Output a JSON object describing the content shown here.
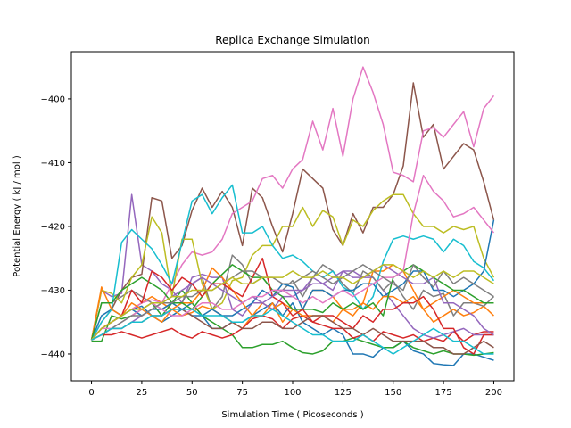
{
  "chart_data": {
    "type": "line",
    "title": "Replica Exchange Simulation",
    "xlabel": "Simulation Time ( Picoseconds )",
    "ylabel": "Potential Energy ( kJ / mol )",
    "xlim": [
      -10,
      210
    ],
    "ylim": [
      -444.2,
      -392.6
    ],
    "xticks": [
      0,
      25,
      50,
      75,
      100,
      125,
      150,
      175,
      200
    ],
    "yticks": [
      -440,
      -430,
      -420,
      -410,
      -400
    ],
    "grid": false,
    "legend": "none",
    "x": [
      0,
      5,
      10,
      15,
      20,
      25,
      30,
      35,
      40,
      45,
      50,
      55,
      60,
      65,
      70,
      75,
      80,
      85,
      90,
      95,
      100,
      105,
      110,
      115,
      120,
      125,
      130,
      135,
      140,
      145,
      150,
      155,
      160,
      165,
      170,
      175,
      180,
      185,
      190,
      195,
      200
    ],
    "series": [
      {
        "color": "#1f77b4",
        "values": [
          -437.8,
          -434,
          -433,
          -434,
          -433,
          -432.5,
          -434,
          -435,
          -434,
          -433,
          -432,
          -434,
          -436,
          -436,
          -435,
          -435,
          -434,
          -433,
          -432,
          -434,
          -432,
          -435,
          -436,
          -437,
          -436,
          -437,
          -440,
          -440,
          -440.5,
          -439,
          -439,
          -438,
          -439.5,
          -440,
          -441.5,
          -441.7,
          -441.8,
          -440,
          -440,
          -440.5,
          -441
        ]
      },
      {
        "color": "#ff7f0e",
        "values": [
          -437.8,
          -436,
          -435,
          -434,
          -433,
          -432,
          -431,
          -432,
          -433,
          -434,
          -433.5,
          -432.5,
          -433,
          -434,
          -435,
          -436,
          -434,
          -432,
          -433,
          -432,
          -433,
          -433,
          -430,
          -430,
          -431,
          -433,
          -434,
          -432,
          -427,
          -427,
          -426,
          -427,
          -430,
          -433,
          -435,
          -434,
          -433,
          -434,
          -433.5,
          -432.5,
          -434
        ]
      },
      {
        "color": "#2ca02c",
        "values": [
          -438,
          -438,
          -434,
          -434.5,
          -434,
          -433,
          -432,
          -434,
          -432,
          -430,
          -432,
          -434,
          -435,
          -436,
          -437,
          -439,
          -439,
          -438.5,
          -438.5,
          -438,
          -439,
          -439.8,
          -440,
          -439.5,
          -438,
          -438,
          -437.5,
          -438,
          -438.5,
          -439,
          -439,
          -438,
          -439,
          -439.5,
          -440,
          -439.5,
          -440,
          -440,
          -440.2,
          -440,
          -439.8
        ]
      },
      {
        "color": "#d62728",
        "values": [
          -437.8,
          -437,
          -437,
          -436.5,
          -437,
          -437.5,
          -437,
          -436.5,
          -436,
          -437,
          -437.5,
          -436.5,
          -437,
          -437.5,
          -437,
          -436,
          -434.5,
          -434,
          -434.5,
          -436,
          -434.5,
          -434,
          -435,
          -435.5,
          -436,
          -436,
          -437.5,
          -437,
          -438,
          -436.5,
          -437,
          -437.5,
          -437,
          -438,
          -437.5,
          -438,
          -436.5,
          -438,
          -437,
          -436.5,
          -436.5
        ]
      },
      {
        "color": "#9467bd",
        "values": [
          -437.8,
          -430,
          -431,
          -430.5,
          -415,
          -426,
          -427,
          -429,
          -430,
          -432,
          -428,
          -427.5,
          -428,
          -428,
          -433,
          -434,
          -432,
          -432,
          -433,
          -431,
          -431,
          -430,
          -428,
          -429,
          -430,
          -427,
          -427,
          -428,
          -428,
          -430,
          -432,
          -434,
          -436,
          -437,
          -437.5,
          -437,
          -436.5,
          -436,
          -437,
          -437,
          -437
        ]
      },
      {
        "color": "#8c564b",
        "values": [
          -437.8,
          -435,
          -433,
          -430,
          -428,
          -427.5,
          -415.5,
          -416,
          -425,
          -423,
          -417.5,
          -414,
          -417,
          -414.5,
          -417,
          -423,
          -414,
          -415.5,
          -420,
          -424,
          -418,
          -411,
          -412.5,
          -414,
          -420.5,
          -423,
          -418,
          -421,
          -417,
          -417,
          -415,
          -410.5,
          -397.5,
          -406,
          -404,
          -411,
          -409,
          -407,
          -408,
          -413,
          -419
        ]
      },
      {
        "color": "#e377c2",
        "values": [
          -437.8,
          -436,
          -435,
          -434,
          -433,
          -432,
          -431.5,
          -432,
          -429,
          -426,
          -424,
          -424.5,
          -424,
          -422,
          -418,
          -417,
          -416,
          -412.5,
          -412,
          -414,
          -411,
          -409.5,
          -403.5,
          -408,
          -401.5,
          -409,
          -400,
          -395,
          -399,
          -404,
          -411.5,
          -412,
          -413,
          -405,
          -404.5,
          -406,
          -404,
          -402,
          -407.5,
          -401.5,
          -399.5
        ]
      },
      {
        "color": "#7f7f7f",
        "values": [
          -437.8,
          -432,
          -432,
          -431,
          -430,
          -431,
          -432,
          -433,
          -432,
          -432,
          -429,
          -428,
          -433,
          -431,
          -424.5,
          -426,
          -429,
          -428,
          -430,
          -430,
          -428.5,
          -431,
          -428,
          -426,
          -427,
          -429,
          -430.5,
          -427,
          -428,
          -430,
          -428.5,
          -431,
          -433,
          -430,
          -431,
          -430.5,
          -434,
          -432,
          -432,
          -432.5,
          -431
        ]
      },
      {
        "color": "#bcbd22",
        "values": [
          -437.8,
          -430,
          -430.5,
          -432,
          -428,
          -426,
          -418.5,
          -421,
          -431,
          -422,
          -422,
          -429,
          -433,
          -432,
          -428.5,
          -428,
          -424.5,
          -423,
          -423,
          -420,
          -420,
          -417,
          -420,
          -417.5,
          -418.5,
          -423,
          -419,
          -420,
          -417.5,
          -416,
          -415,
          -415,
          -418,
          -420,
          -420,
          -421,
          -420,
          -420.5,
          -420,
          -425,
          -428
        ]
      },
      {
        "color": "#17becf",
        "values": [
          -437.8,
          -435,
          -433,
          -422.5,
          -420.5,
          -422,
          -423.5,
          -426,
          -429,
          -422.5,
          -416,
          -415,
          -418,
          -415.5,
          -413.5,
          -421,
          -421,
          -420,
          -423,
          -425,
          -424.5,
          -425.5,
          -427,
          -428,
          -427,
          -429.5,
          -430.5,
          -433,
          -431,
          -425.5,
          -422,
          -421.5,
          -422,
          -421.5,
          -422,
          -424,
          -422,
          -423,
          -425.5,
          -426.5,
          -428.5
        ]
      },
      {
        "color": "#1f77b4",
        "values": [
          -437.8,
          -436,
          -435,
          -434,
          -433,
          -434,
          -433,
          -433,
          -432,
          -433,
          -434,
          -434,
          -433,
          -434,
          -434,
          -433,
          -432,
          -430,
          -431,
          -429,
          -429.5,
          -433,
          -430,
          -430,
          -431,
          -430,
          -430,
          -429,
          -429,
          -431,
          -430,
          -429,
          -427,
          -427,
          -430,
          -430,
          -431,
          -430,
          -429,
          -427,
          -419
        ]
      },
      {
        "color": "#ff7f0e",
        "values": [
          -437.8,
          -429.5,
          -433,
          -434,
          -432,
          -433,
          -434,
          -435,
          -433,
          -432,
          -432,
          -430,
          -426.5,
          -428,
          -430,
          -432,
          -434,
          -434,
          -432,
          -435,
          -433,
          -434,
          -434,
          -434,
          -435,
          -433,
          -433,
          -432,
          -433,
          -431,
          -431,
          -432,
          -431,
          -433,
          -432,
          -431,
          -430,
          -431,
          -432,
          -432,
          -432
        ]
      },
      {
        "color": "#2ca02c",
        "values": [
          -437.8,
          -432,
          -432,
          -430,
          -429,
          -428,
          -429,
          -430,
          -432,
          -432,
          -433,
          -431,
          -429,
          -427.5,
          -426,
          -427,
          -428,
          -428,
          -430,
          -431,
          -433,
          -433,
          -433,
          -433.5,
          -432,
          -433,
          -432,
          -433,
          -432,
          -434,
          -428,
          -427,
          -426,
          -427,
          -428,
          -429,
          -430,
          -430,
          -431,
          -432,
          -432
        ]
      },
      {
        "color": "#d62728",
        "values": [
          -437.8,
          -436,
          -435,
          -434,
          -430,
          -432,
          -427,
          -428,
          -430,
          -428,
          -429,
          -431,
          -429,
          -429,
          -430,
          -431,
          -428,
          -425,
          -431,
          -432,
          -434,
          -433,
          -435,
          -434,
          -434,
          -435,
          -436,
          -434,
          -435,
          -433,
          -433,
          -432,
          -432,
          -431,
          -433,
          -436,
          -436,
          -439,
          -440,
          -437,
          -437
        ]
      },
      {
        "color": "#9467bd",
        "values": [
          -437.8,
          -437,
          -436,
          -436,
          -435,
          -434,
          -433,
          -432,
          -431,
          -430,
          -429,
          -428,
          -429,
          -430,
          -431,
          -432,
          -431,
          -432,
          -431,
          -430,
          -430,
          -430,
          -429,
          -429,
          -428,
          -427,
          -428,
          -428,
          -427,
          -426,
          -427,
          -428,
          -429,
          -429,
          -428,
          -432,
          -432,
          -433,
          -434,
          -436,
          -437
        ]
      },
      {
        "color": "#8c564b",
        "values": [
          -437.8,
          -437,
          -436,
          -436,
          -435,
          -435,
          -434,
          -434,
          -433,
          -433,
          -434,
          -435,
          -436,
          -436,
          -435,
          -436,
          -436,
          -435,
          -435,
          -436,
          -436,
          -435,
          -434,
          -434,
          -435,
          -436,
          -436,
          -437,
          -436,
          -437,
          -438,
          -438,
          -438,
          -438,
          -439,
          -439,
          -440,
          -440,
          -439,
          -438,
          -439
        ]
      },
      {
        "color": "#e377c2",
        "values": [
          -437.8,
          -436,
          -436,
          -435,
          -434,
          -433,
          -432,
          -433,
          -434,
          -434,
          -433,
          -432,
          -432,
          -433,
          -433,
          -432,
          -431,
          -431,
          -430,
          -430,
          -431,
          -432,
          -431,
          -432,
          -431,
          -430,
          -431,
          -430,
          -429,
          -428,
          -428,
          -427,
          -418,
          -412,
          -414.5,
          -416,
          -418.5,
          -418,
          -417,
          -419,
          -421
        ]
      },
      {
        "color": "#7f7f7f",
        "values": [
          -437.8,
          -437,
          -436,
          -435,
          -434,
          -434,
          -433,
          -432,
          -432,
          -431,
          -431,
          -430,
          -430,
          -429,
          -428,
          -427,
          -427,
          -428,
          -428,
          -429,
          -429,
          -428,
          -427,
          -428,
          -429,
          -428,
          -427,
          -426,
          -427,
          -428,
          -429,
          -430,
          -426,
          -428,
          -429.5,
          -427,
          -429,
          -428,
          -429,
          -430,
          -431
        ]
      },
      {
        "color": "#bcbd22",
        "values": [
          -437.8,
          -436,
          -435,
          -434,
          -433,
          -433,
          -432,
          -432,
          -431,
          -431,
          -430,
          -430,
          -430,
          -429,
          -428,
          -429,
          -429,
          -428,
          -428,
          -428,
          -427,
          -428,
          -428,
          -427,
          -428,
          -428,
          -429,
          -428,
          -427,
          -426,
          -426,
          -427,
          -428,
          -427,
          -428,
          -427,
          -428,
          -427,
          -427,
          -428,
          -429
        ]
      },
      {
        "color": "#17becf",
        "values": [
          -437.8,
          -437,
          -436,
          -436,
          -435,
          -435,
          -434,
          -434,
          -433,
          -433,
          -433,
          -434,
          -434,
          -434,
          -435,
          -435,
          -434,
          -434,
          -433,
          -434,
          -435,
          -436,
          -437,
          -437,
          -438,
          -438,
          -438,
          -437,
          -438,
          -439,
          -440,
          -439,
          -438,
          -437,
          -436,
          -437,
          -438,
          -438,
          -439,
          -440,
          -440
        ]
      }
    ]
  }
}
